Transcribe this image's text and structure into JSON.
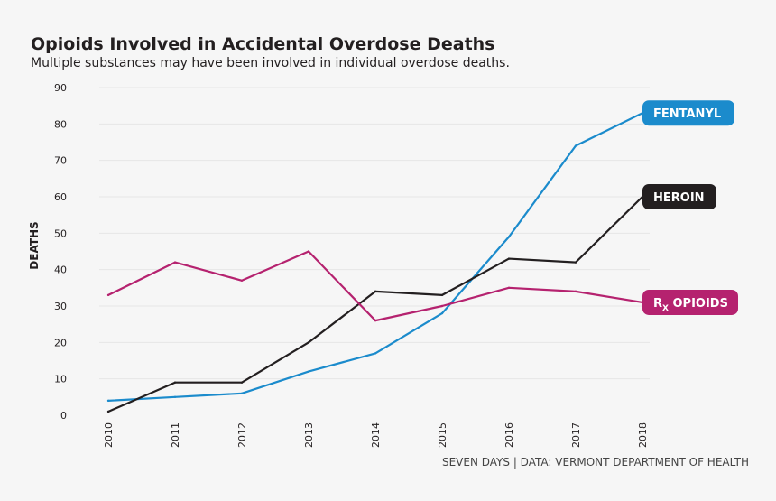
{
  "header": {
    "title": "Opioids Involved in Accidental Overdose Deaths",
    "subtitle": "Multiple substances may have been involved in individual overdose deaths."
  },
  "source": "SEVEN DAYS | DATA: VERMONT DEPARTMENT OF HEALTH",
  "chart_data": {
    "type": "line",
    "title": "Opioids Involved in Accidental Overdose Deaths",
    "xlabel": "",
    "ylabel": "DEATHS",
    "ylim": [
      0,
      90
    ],
    "yticks": [
      0,
      10,
      20,
      30,
      40,
      50,
      60,
      70,
      80,
      90
    ],
    "x": [
      "2010",
      "2011",
      "2012",
      "2013",
      "2014",
      "2015",
      "2016",
      "2017",
      "2018"
    ],
    "grid": true,
    "legend": "direct-labels-right",
    "series": [
      {
        "name": "FENTANYL",
        "label_main": "FENTANYL",
        "label_sub": "",
        "color": "#1b8bcc",
        "values": [
          4,
          5,
          6,
          12,
          17,
          28,
          49,
          74,
          83
        ]
      },
      {
        "name": "HEROIN",
        "label_main": "HEROIN",
        "label_sub": "",
        "color": "#231f20",
        "values": [
          1,
          9,
          9,
          20,
          34,
          33,
          43,
          42,
          60
        ]
      },
      {
        "name": "Rx OPIOIDS",
        "label_main": "R",
        "label_sub": "X",
        "label_rest": " OPIOIDS",
        "color": "#b5226f",
        "values": [
          33,
          42,
          37,
          45,
          26,
          30,
          35,
          34,
          31
        ]
      }
    ]
  }
}
